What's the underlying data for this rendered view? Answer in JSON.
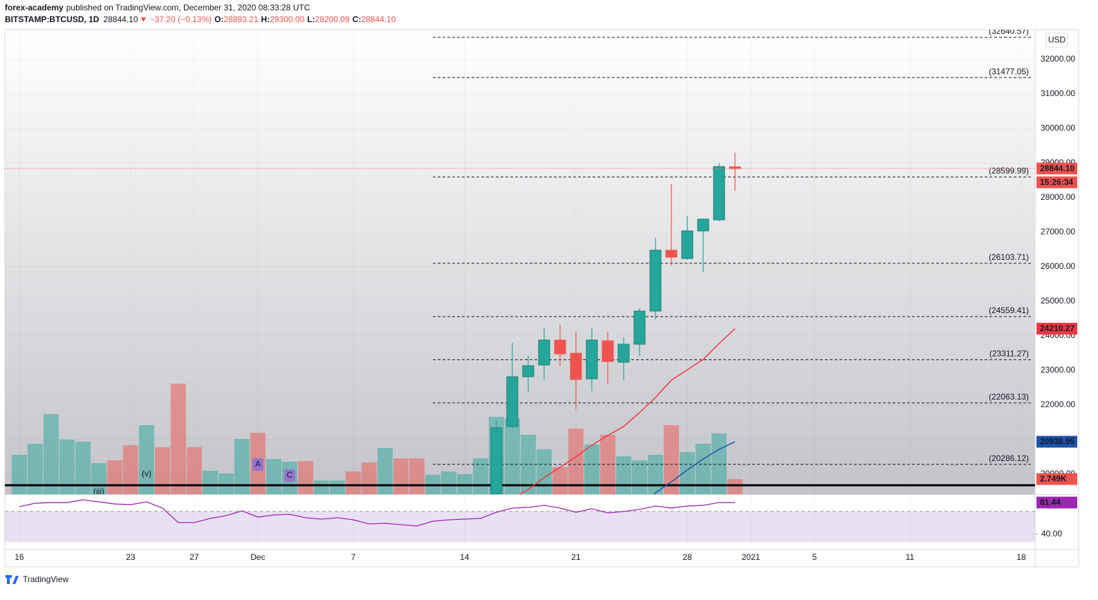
{
  "header": {
    "author": "forex-academy",
    "published": "published on TradingView.com, December 31, 2020 08:33:28 UTC",
    "symbol": "BITSTAMP:BTCUSD, 1D",
    "last": "28844.10",
    "change": "▼ −37.20 (−0.13%)",
    "ohlc": [
      {
        "key": "O:",
        "value": "28893.21"
      },
      {
        "key": "H:",
        "value": "29300.00"
      },
      {
        "key": "L:",
        "value": "28200.09"
      },
      {
        "key": "C:",
        "value": "28844.10"
      }
    ]
  },
  "brand": "TradingView",
  "chart_data": {
    "type": "candlestick",
    "currency": "USD",
    "xlim": [
      -0.91,
      63.87
    ],
    "xticks": [
      {
        "value": 0,
        "label": "16"
      },
      {
        "value": 7,
        "label": "23"
      },
      {
        "value": 11,
        "label": "27"
      },
      {
        "value": 15,
        "label": "Dec"
      },
      {
        "value": 21,
        "label": "7"
      },
      {
        "value": 28,
        "label": "14"
      },
      {
        "value": 35,
        "label": "21"
      },
      {
        "value": 42,
        "label": "28"
      },
      {
        "value": 46,
        "label": "2021"
      },
      {
        "value": 50,
        "label": "5"
      },
      {
        "value": 56,
        "label": "11"
      },
      {
        "value": 63,
        "label": "18"
      }
    ],
    "ylim": [
      19420,
      32860
    ],
    "yticks": [
      {
        "value": 20000,
        "label": "20000.00"
      },
      {
        "value": 21000,
        "label": "21000.00"
      },
      {
        "value": 22000,
        "label": "22000.00"
      },
      {
        "value": 23000,
        "label": "23000.00"
      },
      {
        "value": 24000,
        "label": "24000.00"
      },
      {
        "value": 25000,
        "label": "25000.00"
      },
      {
        "value": 26000,
        "label": "26000.00"
      },
      {
        "value": 27000,
        "label": "27000.00"
      },
      {
        "value": 28000,
        "label": "28000.00"
      },
      {
        "value": 29000,
        "label": "29000.00"
      },
      {
        "value": 30000,
        "label": "30000.00"
      },
      {
        "value": 31000,
        "label": "31000.00"
      },
      {
        "value": 32000,
        "label": "32000.00"
      }
    ],
    "grid": true,
    "up_color": "#26a69a",
    "down_color": "#ef5350",
    "candles": {
      "x": [
        30,
        31,
        32,
        33,
        34,
        35,
        36,
        37,
        38,
        39,
        40,
        41,
        42,
        43,
        44,
        45
      ],
      "open": [
        19420,
        21380,
        22820,
        23160,
        23880,
        23500,
        22760,
        23860,
        23240,
        23760,
        24720,
        26480,
        26240,
        27040,
        27360,
        28893.21
      ],
      "high": [
        21560,
        23800,
        23420,
        24240,
        24320,
        24120,
        24220,
        24120,
        23960,
        24800,
        26840,
        28400,
        27480,
        27400,
        29000,
        29300
      ],
      "low": [
        19290,
        21300,
        22380,
        22740,
        23120,
        21880,
        22400,
        22620,
        22720,
        23420,
        24480,
        26040,
        26200,
        25840,
        27320,
        28200.09
      ],
      "close": [
        21340,
        22820,
        23140,
        23880,
        23480,
        22740,
        23880,
        23260,
        23760,
        24720,
        26480,
        26280,
        27040,
        27380,
        28900,
        28844.1
      ]
    },
    "close_label": "28844.10",
    "countdown": "15:26:34",
    "levels": [
      {
        "value": 32640.57,
        "label": "(32640.57)"
      },
      {
        "value": 31477.05,
        "label": "(31477.05)"
      },
      {
        "value": 28599.99,
        "label": "(28599.99)"
      },
      {
        "value": 26103.71,
        "label": "(26103.71)"
      },
      {
        "value": 24559.41,
        "label": "(24559.41)"
      },
      {
        "value": 23311.27,
        "label": "(23311.27)"
      },
      {
        "value": 22063.13,
        "label": "(22063.13)"
      },
      {
        "value": 20286.12,
        "label": "(20286.12)"
      }
    ],
    "support": 19680,
    "ma": [
      {
        "color": "#f23645",
        "x": [
          31,
          32,
          33,
          34,
          35,
          36,
          37,
          38,
          39,
          40,
          41,
          42,
          43,
          44,
          45
        ],
        "values": [
          19300,
          19560,
          19900,
          20200,
          20500,
          20840,
          21120,
          21380,
          21780,
          22220,
          22720,
          23020,
          23320,
          23780,
          24210.27
        ]
      },
      {
        "color": "#1e53a8",
        "x": [
          39,
          40,
          41,
          42,
          43,
          44,
          45
        ],
        "values": [
          19000,
          19460,
          19780,
          20120,
          20440,
          20720,
          20938.95
        ]
      }
    ],
    "vlim": [
      0,
      84000
    ],
    "volume": {
      "x": [
        0,
        1,
        2,
        3,
        4,
        5,
        6,
        7,
        8,
        9,
        10,
        11,
        12,
        13,
        14,
        15,
        16,
        17,
        18,
        19,
        20,
        21,
        22,
        23,
        24,
        25,
        26,
        27,
        28,
        29,
        30,
        31,
        32,
        33,
        34,
        35,
        36,
        37,
        38,
        39,
        40,
        41,
        42,
        43,
        44,
        45
      ],
      "values": [
        7125,
        9125,
        14500,
        9875,
        9500,
        5625,
        6125,
        8875,
        12500,
        8500,
        20000,
        8500,
        4250,
        3750,
        10000,
        11125,
        6375,
        5875,
        6000,
        2500,
        2500,
        4125,
        5750,
        8375,
        6500,
        6500,
        3500,
        4125,
        3625,
        6500,
        14000,
        13750,
        10750,
        8125,
        4875,
        11875,
        9000,
        10750,
        6875,
        6125,
        7125,
        12500,
        7625,
        9125,
        11000,
        2749
      ],
      "colors": [
        "#26a69a",
        "#26a69a",
        "#26a69a",
        "#26a69a",
        "#26a69a",
        "#26a69a",
        "#ef5350",
        "#ef5350",
        "#26a69a",
        "#ef5350",
        "#ef5350",
        "#ef5350",
        "#26a69a",
        "#26a69a",
        "#26a69a",
        "#ef5350",
        "#26a69a",
        "#26a69a",
        "#ef5350",
        "#26a69a",
        "#26a69a",
        "#ef5350",
        "#ef5350",
        "#26a69a",
        "#ef5350",
        "#ef5350",
        "#26a69a",
        "#26a69a",
        "#26a69a",
        "#26a69a",
        "#26a69a",
        "#26a69a",
        "#26a69a",
        "#26a69a",
        "#ef5350",
        "#ef5350",
        "#26a69a",
        "#ef5350",
        "#26a69a",
        "#26a69a",
        "#26a69a",
        "#ef5350",
        "#26a69a",
        "#26a69a",
        "#26a69a",
        "#ef5350"
      ],
      "last_label": "2.749K"
    },
    "rsi": {
      "color": "#9c27b0",
      "ylim": [
        24.68,
        91.35
      ],
      "yticks": [
        {
          "value": 40,
          "label": "40.00"
        }
      ],
      "band": [
        30,
        70
      ],
      "x": [
        0,
        1,
        2,
        3,
        4,
        5,
        6,
        7,
        8,
        9,
        10,
        11,
        12,
        13,
        14,
        15,
        16,
        17,
        18,
        19,
        20,
        21,
        22,
        23,
        24,
        25,
        26,
        27,
        28,
        29,
        30,
        31,
        32,
        33,
        34,
        35,
        36,
        37,
        38,
        39,
        40,
        41,
        42,
        43,
        44,
        45
      ],
      "values": [
        76.0,
        80.5,
        81.4,
        81.4,
        85.0,
        82.3,
        79.6,
        78.7,
        82.3,
        74.2,
        55.3,
        55.3,
        60.7,
        64.3,
        70.6,
        62.5,
        65.2,
        66.1,
        61.6,
        59.8,
        61.6,
        58.9,
        53.5,
        54.4,
        52.6,
        50.8,
        57.1,
        58.9,
        59.8,
        60.7,
        68.8,
        74.2,
        75.1,
        77.8,
        74.2,
        68.8,
        73.3,
        67.9,
        69.7,
        72.4,
        76.9,
        74.2,
        76.9,
        77.8,
        81.4,
        81.44
      ]
    },
    "annotations": [
      {
        "text": "(v)"
      },
      {
        "text": "(iii)"
      },
      {
        "text": "A"
      },
      {
        "text": "C"
      }
    ]
  }
}
